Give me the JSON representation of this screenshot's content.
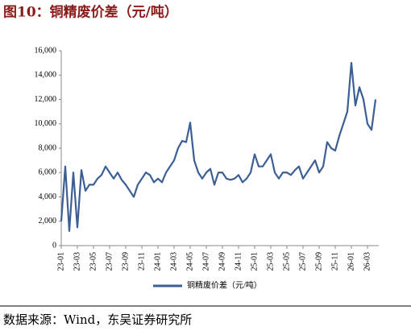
{
  "header": {
    "title": "图10：铜精废价差（元/吨）"
  },
  "chart_data": {
    "type": "line",
    "categories": [
      "23-01",
      null,
      null,
      null,
      "23-03",
      null,
      null,
      null,
      "23-05",
      null,
      null,
      null,
      "23-07",
      null,
      null,
      null,
      "23-09",
      null,
      null,
      null,
      "23-11",
      null,
      null,
      null,
      "24-01",
      null,
      null,
      null,
      "24-03",
      null,
      null,
      null,
      "24-05",
      null,
      null,
      null,
      "24-07",
      null,
      null,
      null,
      "24-09",
      null,
      null,
      null,
      "24-11",
      null,
      null,
      null,
      "25-01",
      null,
      null,
      null,
      "25-03",
      null,
      null,
      null,
      "25-05",
      null,
      null,
      null,
      "25-07",
      null,
      null,
      null,
      "25-09",
      null,
      null,
      null,
      "25-11",
      null,
      null,
      null,
      "26-01",
      null,
      null,
      null,
      "26-03",
      null,
      null
    ],
    "series": [
      {
        "name": "铜精废价差（元/吨）",
        "color": "#3b5f95",
        "values": [
          2000,
          6500,
          1200,
          6000,
          1500,
          6200,
          4500,
          5000,
          5000,
          5500,
          5800,
          6500,
          6000,
          5500,
          6000,
          5400,
          5000,
          4500,
          4000,
          5000,
          5500,
          6000,
          5800,
          5200,
          5500,
          5200,
          6000,
          6500,
          7000,
          8000,
          8600,
          8500,
          10100,
          7000,
          6000,
          5500,
          6000,
          6300,
          5000,
          6000,
          6000,
          5500,
          5400,
          5500,
          5800,
          5200,
          5500,
          6000,
          7500,
          6500,
          6500,
          7000,
          7500,
          6000,
          5500,
          6000,
          6000,
          5800,
          6200,
          6500,
          5500,
          6000,
          6500,
          7000,
          6000,
          6500,
          8500,
          8000,
          7800,
          9000,
          10000,
          11000,
          15000,
          11500,
          13000,
          12000,
          10000,
          9500,
          12000
        ]
      }
    ],
    "ylim": [
      0,
      16000
    ],
    "yticks": [
      0,
      {
        "value": 2000,
        "label": "2,000"
      },
      {
        "value": 4000,
        "label": "4,000"
      },
      {
        "value": 6000,
        "label": "6,000"
      },
      {
        "value": 8000,
        "label": "8,000"
      },
      {
        "value": 10000,
        "label": "10,000"
      },
      {
        "value": 12000,
        "label": "12,000"
      },
      {
        "value": 14000,
        "label": "14,000"
      },
      {
        "value": 16000,
        "label": "16,000"
      }
    ],
    "legend": "bottom"
  },
  "footer": {
    "source": "数据来源：Wind，东吴证券研究所"
  }
}
